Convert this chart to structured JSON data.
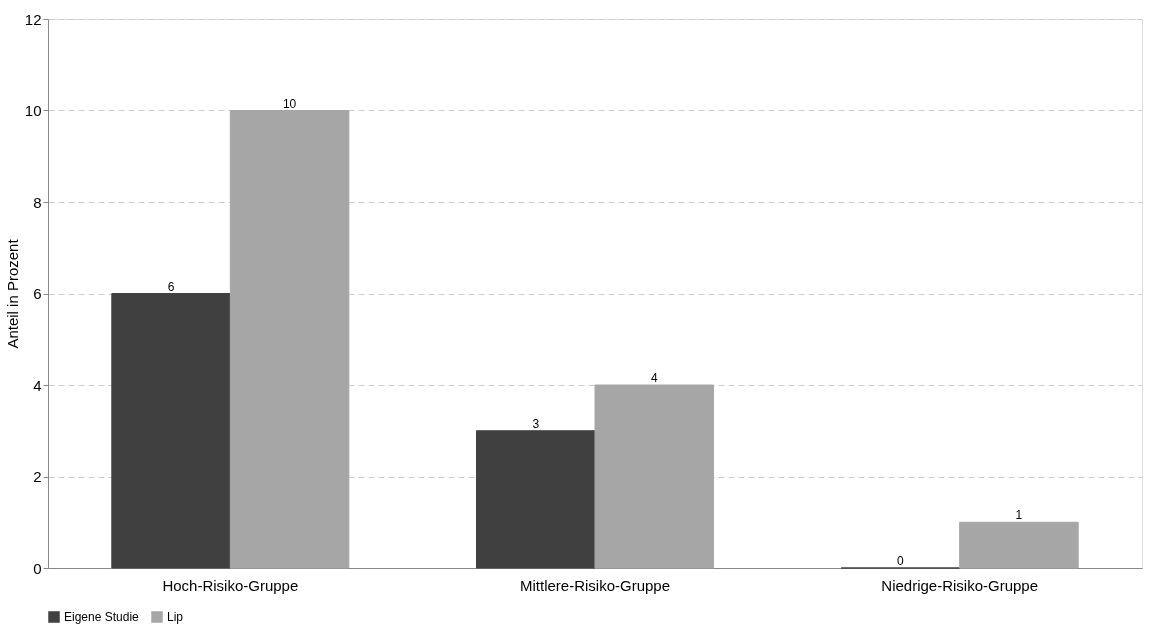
{
  "chart_data": {
    "type": "bar",
    "ylabel": "Anteil in Prozent",
    "categories": [
      "Hoch-Risiko-Gruppe",
      "Mittlere-Risiko-Gruppe",
      "Niedrige-Risiko-Gruppe"
    ],
    "series": [
      {
        "name": "Eigene Studie",
        "color": "#404040",
        "values": [
          6,
          3,
          0
        ]
      },
      {
        "name": "Lip",
        "color": "#a6a6a6",
        "values": [
          10,
          4,
          1
        ]
      }
    ],
    "ylim": [
      0,
      12
    ],
    "yticks": [
      0,
      2,
      4,
      6,
      8,
      10,
      12
    ],
    "grid": "y",
    "legend": "bottom",
    "data_labels": true
  }
}
